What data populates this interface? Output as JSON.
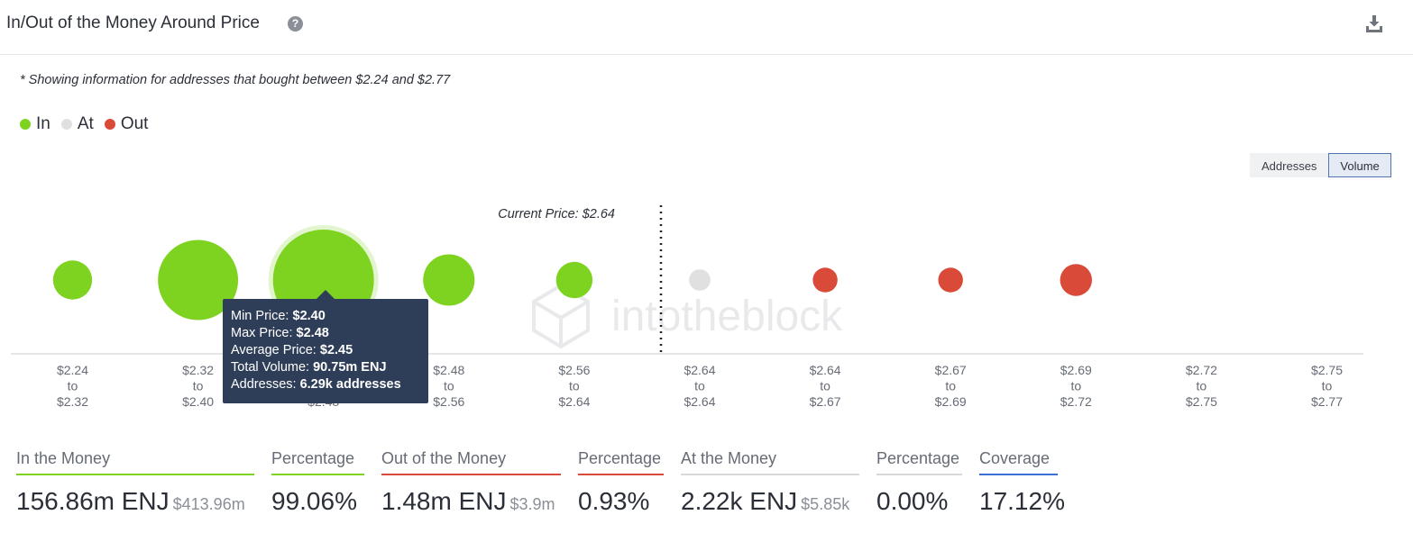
{
  "header": {
    "title": "In/Out of the Money Around Price",
    "help_icon": "question-icon",
    "download_icon": "download-icon"
  },
  "note": "* Showing information for addresses that bought between $2.24 and $2.77",
  "legend": [
    {
      "label": "In",
      "color": "#7ed321"
    },
    {
      "label": "At",
      "color": "#e0e0e0"
    },
    {
      "label": "Out",
      "color": "#d94a38"
    }
  ],
  "toggle": {
    "options": [
      "Addresses",
      "Volume"
    ],
    "selected": "Volume"
  },
  "chart": {
    "current_price_label": "Current Price: $2.64",
    "watermark": "intotheblock"
  },
  "chart_data": {
    "type": "bubble",
    "status_colors": {
      "in": "#7ed321",
      "at": "#e0e0e0",
      "out": "#d94a38"
    },
    "buckets": [
      {
        "from": "$2.24",
        "to": "$2.32",
        "status": "in",
        "relative_volume": 0.15
      },
      {
        "from": "$2.32",
        "to": "$2.40",
        "status": "in",
        "relative_volume": 0.63
      },
      {
        "from": "$2.40",
        "to": "$2.48",
        "status": "in",
        "relative_volume": 1.0
      },
      {
        "from": "$2.48",
        "to": "$2.56",
        "status": "in",
        "relative_volume": 0.26
      },
      {
        "from": "$2.56",
        "to": "$2.64",
        "status": "in",
        "relative_volume": 0.13
      },
      {
        "from": "$2.64",
        "to": "$2.64",
        "status": "at",
        "relative_volume": 0.045
      },
      {
        "from": "$2.64",
        "to": "$2.67",
        "status": "out",
        "relative_volume": 0.06
      },
      {
        "from": "$2.67",
        "to": "$2.69",
        "status": "out",
        "relative_volume": 0.06
      },
      {
        "from": "$2.69",
        "to": "$2.72",
        "status": "out",
        "relative_volume": 0.1
      },
      {
        "from": "$2.72",
        "to": "$2.75",
        "status": "out",
        "relative_volume": 0
      },
      {
        "from": "$2.75",
        "to": "$2.77",
        "status": "out",
        "relative_volume": 0
      }
    ],
    "separator": "to",
    "current_price": 2.64,
    "hidden_label": "$2.48"
  },
  "tooltip": {
    "min_price_label": "Min Price:",
    "min_price": "$2.40",
    "max_price_label": "Max Price:",
    "max_price": "$2.48",
    "avg_price_label": "Average Price:",
    "avg_price": "$2.45",
    "volume_label": "Total Volume:",
    "volume": "90.75m ENJ",
    "addresses_label": "Addresses:",
    "addresses": "6.29k addresses"
  },
  "stats": [
    {
      "label": "In the Money",
      "value": "156.86m ENJ",
      "sub": "$413.96m",
      "color": "#7ed321"
    },
    {
      "label": "Percentage",
      "value": "99.06%",
      "sub": "",
      "color": "#7ed321"
    },
    {
      "label": "Out of the Money",
      "value": "1.48m ENJ",
      "sub": "$3.9m",
      "color": "#d94a38"
    },
    {
      "label": "Percentage",
      "value": "0.93%",
      "sub": "",
      "color": "#d94a38"
    },
    {
      "label": "At the Money",
      "value": "2.22k ENJ",
      "sub": "$5.85k",
      "color": "#d8d8d8"
    },
    {
      "label": "Percentage",
      "value": "0.00%",
      "sub": "",
      "color": "#d8d8d8"
    },
    {
      "label": "Coverage",
      "value": "17.12%",
      "sub": "",
      "color": "#3b6fd1"
    }
  ]
}
